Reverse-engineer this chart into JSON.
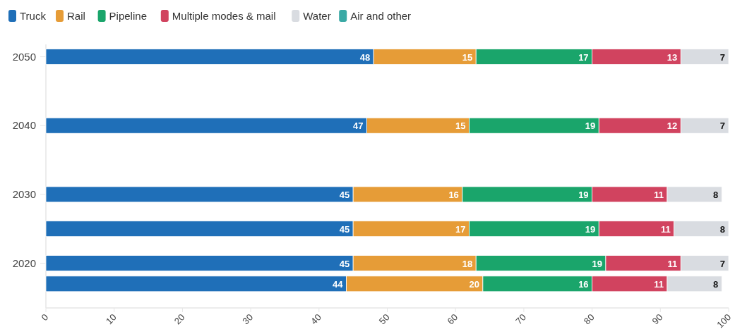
{
  "chart_data": {
    "type": "bar",
    "orientation": "horizontal",
    "stacked": true,
    "legend": "top left",
    "x": [
      2017,
      2020,
      2025,
      2030,
      2040,
      2050
    ],
    "series": [
      {
        "name": "Truck",
        "color": "#1f6fb8",
        "values": [
          44,
          45,
          45,
          45,
          47,
          48
        ],
        "value_labels": [
          "44",
          "45",
          "45",
          "45",
          "47",
          "48"
        ]
      },
      {
        "name": "Rail",
        "color": "#e69c37",
        "values": [
          20,
          18,
          17,
          16,
          15,
          15
        ],
        "value_labels": [
          "20",
          "18",
          "17",
          "16",
          "15",
          "15"
        ]
      },
      {
        "name": "Pipeline",
        "color": "#1aa56b",
        "values": [
          16,
          19,
          19,
          19,
          19,
          17
        ],
        "value_labels": [
          "16",
          "19",
          "19",
          "19",
          "19",
          "17"
        ]
      },
      {
        "name": "Multiple modes & mail",
        "color": "#d1435f",
        "values": [
          11,
          11,
          11,
          11,
          12,
          13
        ],
        "value_labels": [
          "11",
          "11",
          "11",
          "11",
          "12",
          "13"
        ]
      },
      {
        "name": "Water",
        "color": "#d9dce1",
        "values": [
          8,
          7,
          8,
          8,
          7,
          7
        ],
        "value_labels": [
          "8",
          "7",
          "8",
          "8",
          "7",
          "7"
        ]
      },
      {
        "name": "Air and other",
        "color": "#3aa9a5",
        "values": [
          0,
          0,
          0,
          0,
          0,
          0
        ],
        "value_labels": [
          null,
          null,
          null,
          null,
          null,
          null
        ]
      }
    ],
    "xlim": [
      0,
      100
    ],
    "xticks": [
      0,
      10,
      20,
      30,
      40,
      50,
      60,
      70,
      80,
      90,
      100
    ],
    "ylim": [
      2013.5,
      2051.8
    ],
    "yticks": [
      2020,
      2030,
      2040,
      2050
    ]
  }
}
